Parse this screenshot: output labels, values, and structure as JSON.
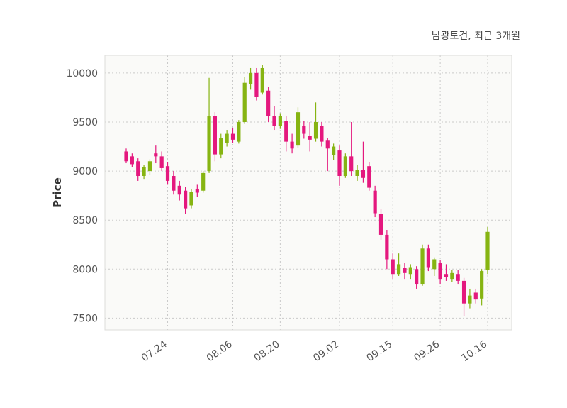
{
  "title": "남광토건, 최근 3개월",
  "ylabel": "Price",
  "colors": {
    "up": "#86b412",
    "down": "#e4187e",
    "grid": "#c9c9c9",
    "plot_bg": "#fafaf8",
    "plot_border": "#dcdcda",
    "page_bg": "#ffffff",
    "axis_text": "#555555",
    "title_text": "#4a4a4a"
  },
  "chart_data": {
    "type": "candlestick",
    "title": "남광토건, 최근 3개월",
    "ylabel": "Price",
    "xlabel": "",
    "ylim": [
      7380,
      10180
    ],
    "yticks": [
      7500,
      8000,
      8500,
      9000,
      9500,
      10000
    ],
    "grid": "dashed",
    "legend": "none",
    "xticks": [
      {
        "i": 7,
        "label": "07.24"
      },
      {
        "i": 18,
        "label": "08.06"
      },
      {
        "i": 26,
        "label": "08.20"
      },
      {
        "i": 36,
        "label": "09.02"
      },
      {
        "i": 45,
        "label": "09.15"
      },
      {
        "i": 53,
        "label": "09.26"
      },
      {
        "i": 61,
        "label": "10.16"
      }
    ],
    "candle_format": [
      "open",
      "high",
      "low",
      "close"
    ],
    "candles": [
      [
        9200,
        9230,
        9080,
        9100
      ],
      [
        9150,
        9180,
        9040,
        9070
      ],
      [
        9100,
        9130,
        8900,
        8950
      ],
      [
        8950,
        9060,
        8920,
        9040
      ],
      [
        9000,
        9120,
        8960,
        9100
      ],
      [
        9180,
        9260,
        9080,
        9150
      ],
      [
        9150,
        9200,
        9000,
        9030
      ],
      [
        9050,
        9090,
        8860,
        8900
      ],
      [
        8950,
        9000,
        8760,
        8800
      ],
      [
        8850,
        8900,
        8700,
        8760
      ],
      [
        8800,
        8840,
        8560,
        8620
      ],
      [
        8650,
        8820,
        8620,
        8790
      ],
      [
        8820,
        8860,
        8740,
        8780
      ],
      [
        8800,
        9000,
        8780,
        8980
      ],
      [
        9000,
        9950,
        8980,
        9560
      ],
      [
        9560,
        9600,
        9100,
        9170
      ],
      [
        9170,
        9380,
        9130,
        9340
      ],
      [
        9290,
        9420,
        9250,
        9380
      ],
      [
        9380,
        9440,
        9290,
        9320
      ],
      [
        9300,
        9520,
        9280,
        9500
      ],
      [
        9500,
        9960,
        9480,
        9900
      ],
      [
        9890,
        10050,
        9830,
        10000
      ],
      [
        10000,
        10050,
        9720,
        9760
      ],
      [
        9800,
        10080,
        9780,
        10050
      ],
      [
        9820,
        9860,
        9500,
        9560
      ],
      [
        9560,
        9660,
        9420,
        9460
      ],
      [
        9460,
        9590,
        9430,
        9560
      ],
      [
        9510,
        9560,
        9200,
        9300
      ],
      [
        9300,
        9380,
        9180,
        9230
      ],
      [
        9260,
        9650,
        9240,
        9600
      ],
      [
        9460,
        9510,
        9330,
        9380
      ],
      [
        9360,
        9500,
        9200,
        9320
      ],
      [
        9330,
        9700,
        9300,
        9500
      ],
      [
        9460,
        9500,
        9250,
        9300
      ],
      [
        9310,
        9340,
        9000,
        9230
      ],
      [
        9160,
        9280,
        9110,
        9250
      ],
      [
        9210,
        9260,
        8850,
        8950
      ],
      [
        8950,
        9180,
        8930,
        9150
      ],
      [
        9150,
        9500,
        8950,
        9000
      ],
      [
        8950,
        9060,
        8900,
        9010
      ],
      [
        9010,
        9300,
        8880,
        8930
      ],
      [
        9050,
        9090,
        8800,
        8830
      ],
      [
        8800,
        8850,
        8530,
        8570
      ],
      [
        8560,
        8610,
        8300,
        8350
      ],
      [
        8350,
        8400,
        8000,
        8100
      ],
      [
        8100,
        8160,
        7900,
        7950
      ],
      [
        7950,
        8160,
        7930,
        8050
      ],
      [
        8010,
        8060,
        7900,
        7960
      ],
      [
        7950,
        8050,
        7900,
        8020
      ],
      [
        8000,
        8030,
        7800,
        7850
      ],
      [
        7850,
        8250,
        7830,
        8210
      ],
      [
        8210,
        8250,
        7980,
        8020
      ],
      [
        8000,
        8120,
        7930,
        8100
      ],
      [
        8060,
        8090,
        7850,
        7900
      ],
      [
        7950,
        8050,
        7880,
        7920
      ],
      [
        7900,
        7990,
        7870,
        7960
      ],
      [
        7950,
        7990,
        7850,
        7880
      ],
      [
        7880,
        7910,
        7520,
        7650
      ],
      [
        7650,
        7800,
        7600,
        7730
      ],
      [
        7760,
        7800,
        7650,
        7690
      ],
      [
        7700,
        8000,
        7630,
        7980
      ],
      [
        7990,
        8430,
        7950,
        8380
      ]
    ]
  }
}
